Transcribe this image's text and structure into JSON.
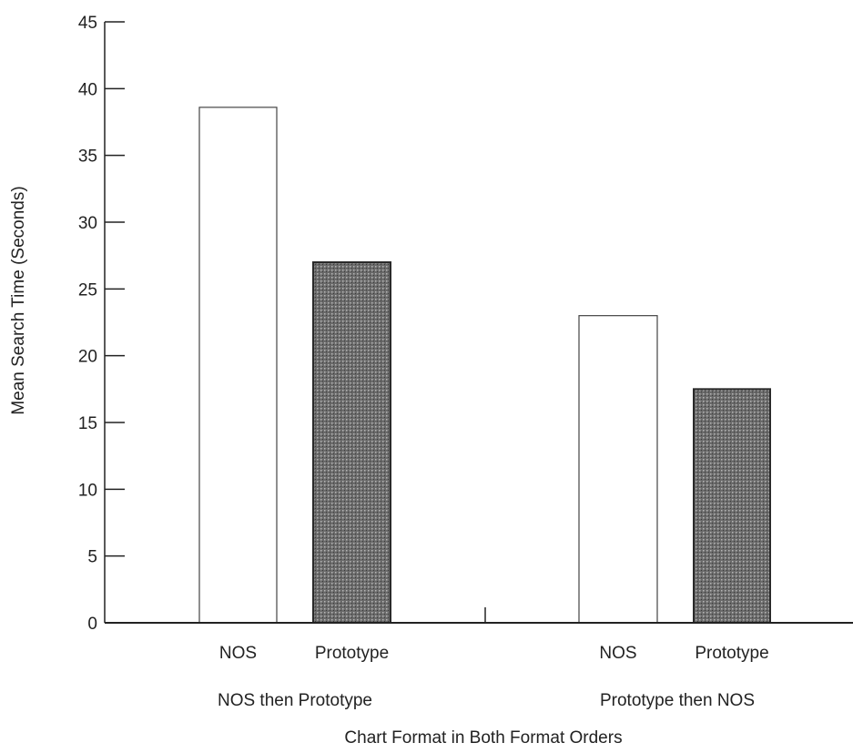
{
  "chart_data": {
    "type": "bar",
    "title": "",
    "xlabel": "Chart Format in Both Format Orders",
    "ylabel": "Mean Search Time (Seconds)",
    "ylim": [
      0,
      45
    ],
    "yticks": [
      0,
      5,
      10,
      15,
      20,
      25,
      30,
      35,
      40,
      45
    ],
    "grid": false,
    "legend": "none",
    "groups": [
      {
        "label": "NOS then Prototype",
        "bars": [
          {
            "label": "NOS",
            "value": 38.6,
            "fill": "white"
          },
          {
            "label": "Prototype",
            "value": 27.0,
            "fill": "dark-dotted"
          }
        ]
      },
      {
        "label": "Prototype then NOS",
        "bars": [
          {
            "label": "NOS",
            "value": 23.0,
            "fill": "white"
          },
          {
            "label": "Prototype",
            "value": 17.5,
            "fill": "dark-dotted"
          }
        ]
      }
    ],
    "colors": {
      "axis": "#222222",
      "white_bar": "#ffffff",
      "dark_bar": "#5a5a5a"
    }
  }
}
